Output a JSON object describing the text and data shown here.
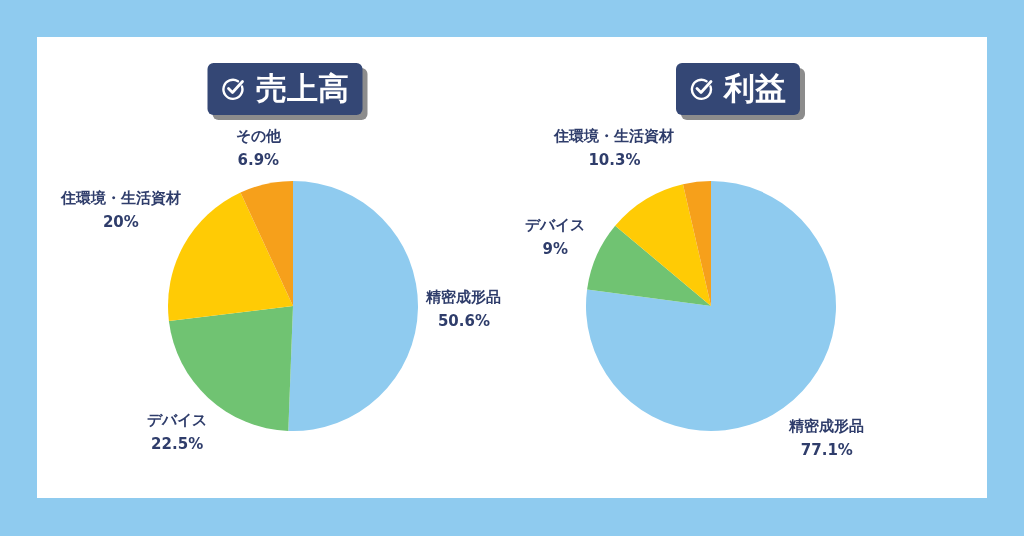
{
  "chart_data": [
    {
      "type": "pie",
      "title": "売上高",
      "categories": [
        "精密成形品",
        "デバイス",
        "住環境・生活資材",
        "その他"
      ],
      "values": [
        50.6,
        22.5,
        20,
        6.9
      ],
      "value_labels": [
        "50.6%",
        "22.5%",
        "20%",
        "6.9%"
      ],
      "colors": [
        "#8fcbef",
        "#70c372",
        "#ffcb05",
        "#f6a01b"
      ]
    },
    {
      "type": "pie",
      "title": "利益",
      "categories": [
        "精密成形品",
        "デバイス",
        "住環境・生活資材",
        null
      ],
      "values": [
        77.1,
        9,
        10.3,
        3.6
      ],
      "value_labels": [
        "77.1%",
        "9%",
        "10.3%",
        null
      ],
      "colors": [
        "#8fcbef",
        "#70c372",
        "#ffcb05",
        "#f6a01b"
      ]
    }
  ]
}
